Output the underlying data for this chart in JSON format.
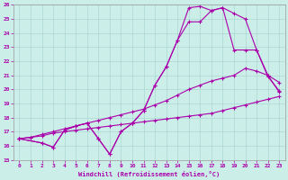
{
  "xlabel": "Windchill (Refroidissement éolien,°C)",
  "bg_color": "#cceee8",
  "grid_color": "#aad8d0",
  "line_color": "#aa00aa",
  "xlim": [
    -0.5,
    23.5
  ],
  "ylim": [
    15,
    26
  ],
  "yticks": [
    15,
    16,
    17,
    18,
    19,
    20,
    21,
    22,
    23,
    24,
    25,
    26
  ],
  "xticks": [
    0,
    1,
    2,
    3,
    4,
    5,
    6,
    7,
    8,
    9,
    10,
    11,
    12,
    13,
    14,
    15,
    16,
    17,
    18,
    19,
    20,
    21,
    22,
    23
  ],
  "line1_x": [
    0,
    1,
    2,
    3,
    4,
    5,
    6,
    7,
    8,
    9,
    10,
    11,
    12,
    13,
    14,
    15,
    16,
    17,
    18,
    19,
    20,
    21,
    22,
    23
  ],
  "line1_y": [
    16.5,
    16.6,
    16.7,
    16.9,
    17.0,
    17.1,
    17.2,
    17.3,
    17.4,
    17.5,
    17.6,
    17.7,
    17.8,
    17.9,
    18.0,
    18.1,
    18.2,
    18.3,
    18.5,
    18.7,
    18.9,
    19.1,
    19.3,
    19.5
  ],
  "line2_x": [
    0,
    1,
    2,
    3,
    4,
    5,
    6,
    7,
    8,
    9,
    10,
    11,
    12,
    13,
    14,
    15,
    16,
    17,
    18,
    19,
    20,
    21,
    22,
    23
  ],
  "line2_y": [
    16.5,
    16.6,
    16.8,
    17.0,
    17.2,
    17.4,
    17.6,
    17.8,
    18.0,
    18.2,
    18.4,
    18.6,
    18.9,
    19.2,
    19.6,
    20.0,
    20.3,
    20.6,
    20.8,
    21.0,
    21.5,
    21.3,
    21.0,
    20.5
  ],
  "line3_x": [
    0,
    2,
    3,
    4,
    5,
    6,
    7,
    8,
    9,
    10,
    11,
    12,
    13,
    14,
    15,
    16,
    17,
    18,
    19,
    20,
    21,
    22,
    23
  ],
  "line3_y": [
    16.5,
    16.2,
    15.9,
    17.1,
    17.4,
    17.6,
    16.5,
    15.4,
    17.0,
    17.6,
    18.5,
    20.3,
    21.6,
    23.5,
    24.8,
    24.8,
    25.6,
    25.8,
    25.4,
    25.0,
    22.8,
    21.0,
    19.8
  ],
  "line4_x": [
    0,
    2,
    3,
    4,
    5,
    6,
    7,
    8,
    9,
    10,
    11,
    12,
    13,
    14,
    15,
    16,
    17,
    18,
    19,
    20,
    21,
    22,
    23
  ],
  "line4_y": [
    16.5,
    16.2,
    15.9,
    17.1,
    17.4,
    17.6,
    16.5,
    15.4,
    17.0,
    17.6,
    18.5,
    20.3,
    21.6,
    23.5,
    25.8,
    25.9,
    25.6,
    25.8,
    22.8,
    22.8,
    22.8,
    20.9,
    19.9
  ]
}
